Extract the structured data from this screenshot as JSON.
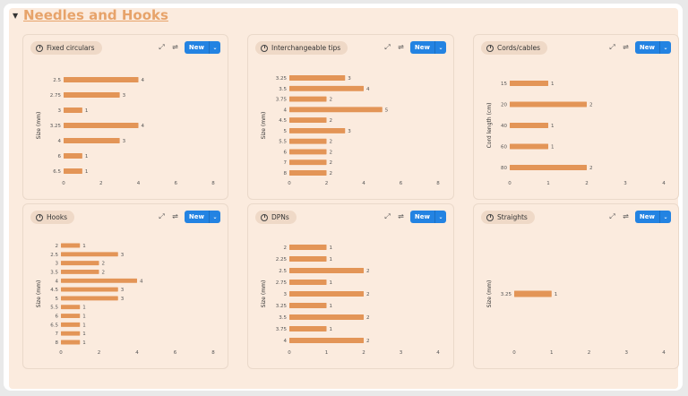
{
  "section": {
    "toggle": "▼",
    "title": "Needles and Hooks"
  },
  "bar_color": "#e39557",
  "accent_color": "#2383e2",
  "icons": {
    "chart": "pie-chart-icon",
    "expand": "expand-icon",
    "settings": "sliders-icon",
    "dropdown": "chevron-down-icon"
  },
  "new_label": "New",
  "chart_data": [
    {
      "title": "Fixed circulars",
      "type": "bar",
      "orientation": "horizontal",
      "ylabel": "Size (mm)",
      "xlabel": "",
      "categories": [
        "2.5",
        "2.75",
        "3",
        "3.25",
        "4",
        "6",
        "6.5"
      ],
      "values": [
        4,
        3,
        1,
        4,
        3,
        1,
        1
      ],
      "xlim": [
        0,
        8
      ],
      "xticks": [
        0,
        2,
        4,
        6,
        8
      ],
      "grid": false
    },
    {
      "title": "Interchangeable tips",
      "type": "bar",
      "orientation": "horizontal",
      "ylabel": "Size (mm)",
      "xlabel": "",
      "categories": [
        "3.25",
        "3.5",
        "3.75",
        "4",
        "4.5",
        "5",
        "5.5",
        "6",
        "7",
        "8"
      ],
      "values": [
        3,
        4,
        2,
        5,
        2,
        3,
        2,
        2,
        2,
        2
      ],
      "xlim": [
        0,
        8
      ],
      "xticks": [
        0,
        2,
        4,
        6,
        8
      ],
      "grid": false
    },
    {
      "title": "Cords/cables",
      "type": "bar",
      "orientation": "horizontal",
      "ylabel": "Cord length (cm)",
      "xlabel": "",
      "categories": [
        "15",
        "20",
        "40",
        "60",
        "80"
      ],
      "values": [
        1,
        2,
        1,
        1,
        2
      ],
      "xlim": [
        0,
        4
      ],
      "xticks": [
        0,
        1,
        2,
        3,
        4
      ],
      "grid": false
    },
    {
      "title": "Hooks",
      "type": "bar",
      "orientation": "horizontal",
      "ylabel": "Size (mm)",
      "xlabel": "",
      "categories": [
        "2",
        "2.5",
        "3",
        "3.5",
        "4",
        "4.5",
        "5",
        "5.5",
        "6",
        "6.5",
        "7",
        "8"
      ],
      "values": [
        1,
        3,
        2,
        2,
        4,
        3,
        3,
        1,
        1,
        1,
        1,
        1
      ],
      "xlim": [
        0,
        8
      ],
      "xticks": [
        0,
        2,
        4,
        6,
        8
      ],
      "grid": false
    },
    {
      "title": "DPNs",
      "type": "bar",
      "orientation": "horizontal",
      "ylabel": "Size (mm)",
      "xlabel": "",
      "categories": [
        "2",
        "2.25",
        "2.5",
        "2.75",
        "3",
        "3.25",
        "3.5",
        "3.75",
        "4"
      ],
      "values": [
        1,
        1,
        2,
        1,
        2,
        1,
        2,
        1,
        2
      ],
      "xlim": [
        0,
        4
      ],
      "xticks": [
        0,
        1,
        2,
        3,
        4
      ],
      "grid": false
    },
    {
      "title": "Straights",
      "type": "bar",
      "orientation": "horizontal",
      "ylabel": "Size (mm)",
      "xlabel": "",
      "categories": [
        "3.25"
      ],
      "values": [
        1
      ],
      "xlim": [
        0,
        4
      ],
      "xticks": [
        0,
        1,
        2,
        3,
        4
      ],
      "grid": false
    }
  ]
}
